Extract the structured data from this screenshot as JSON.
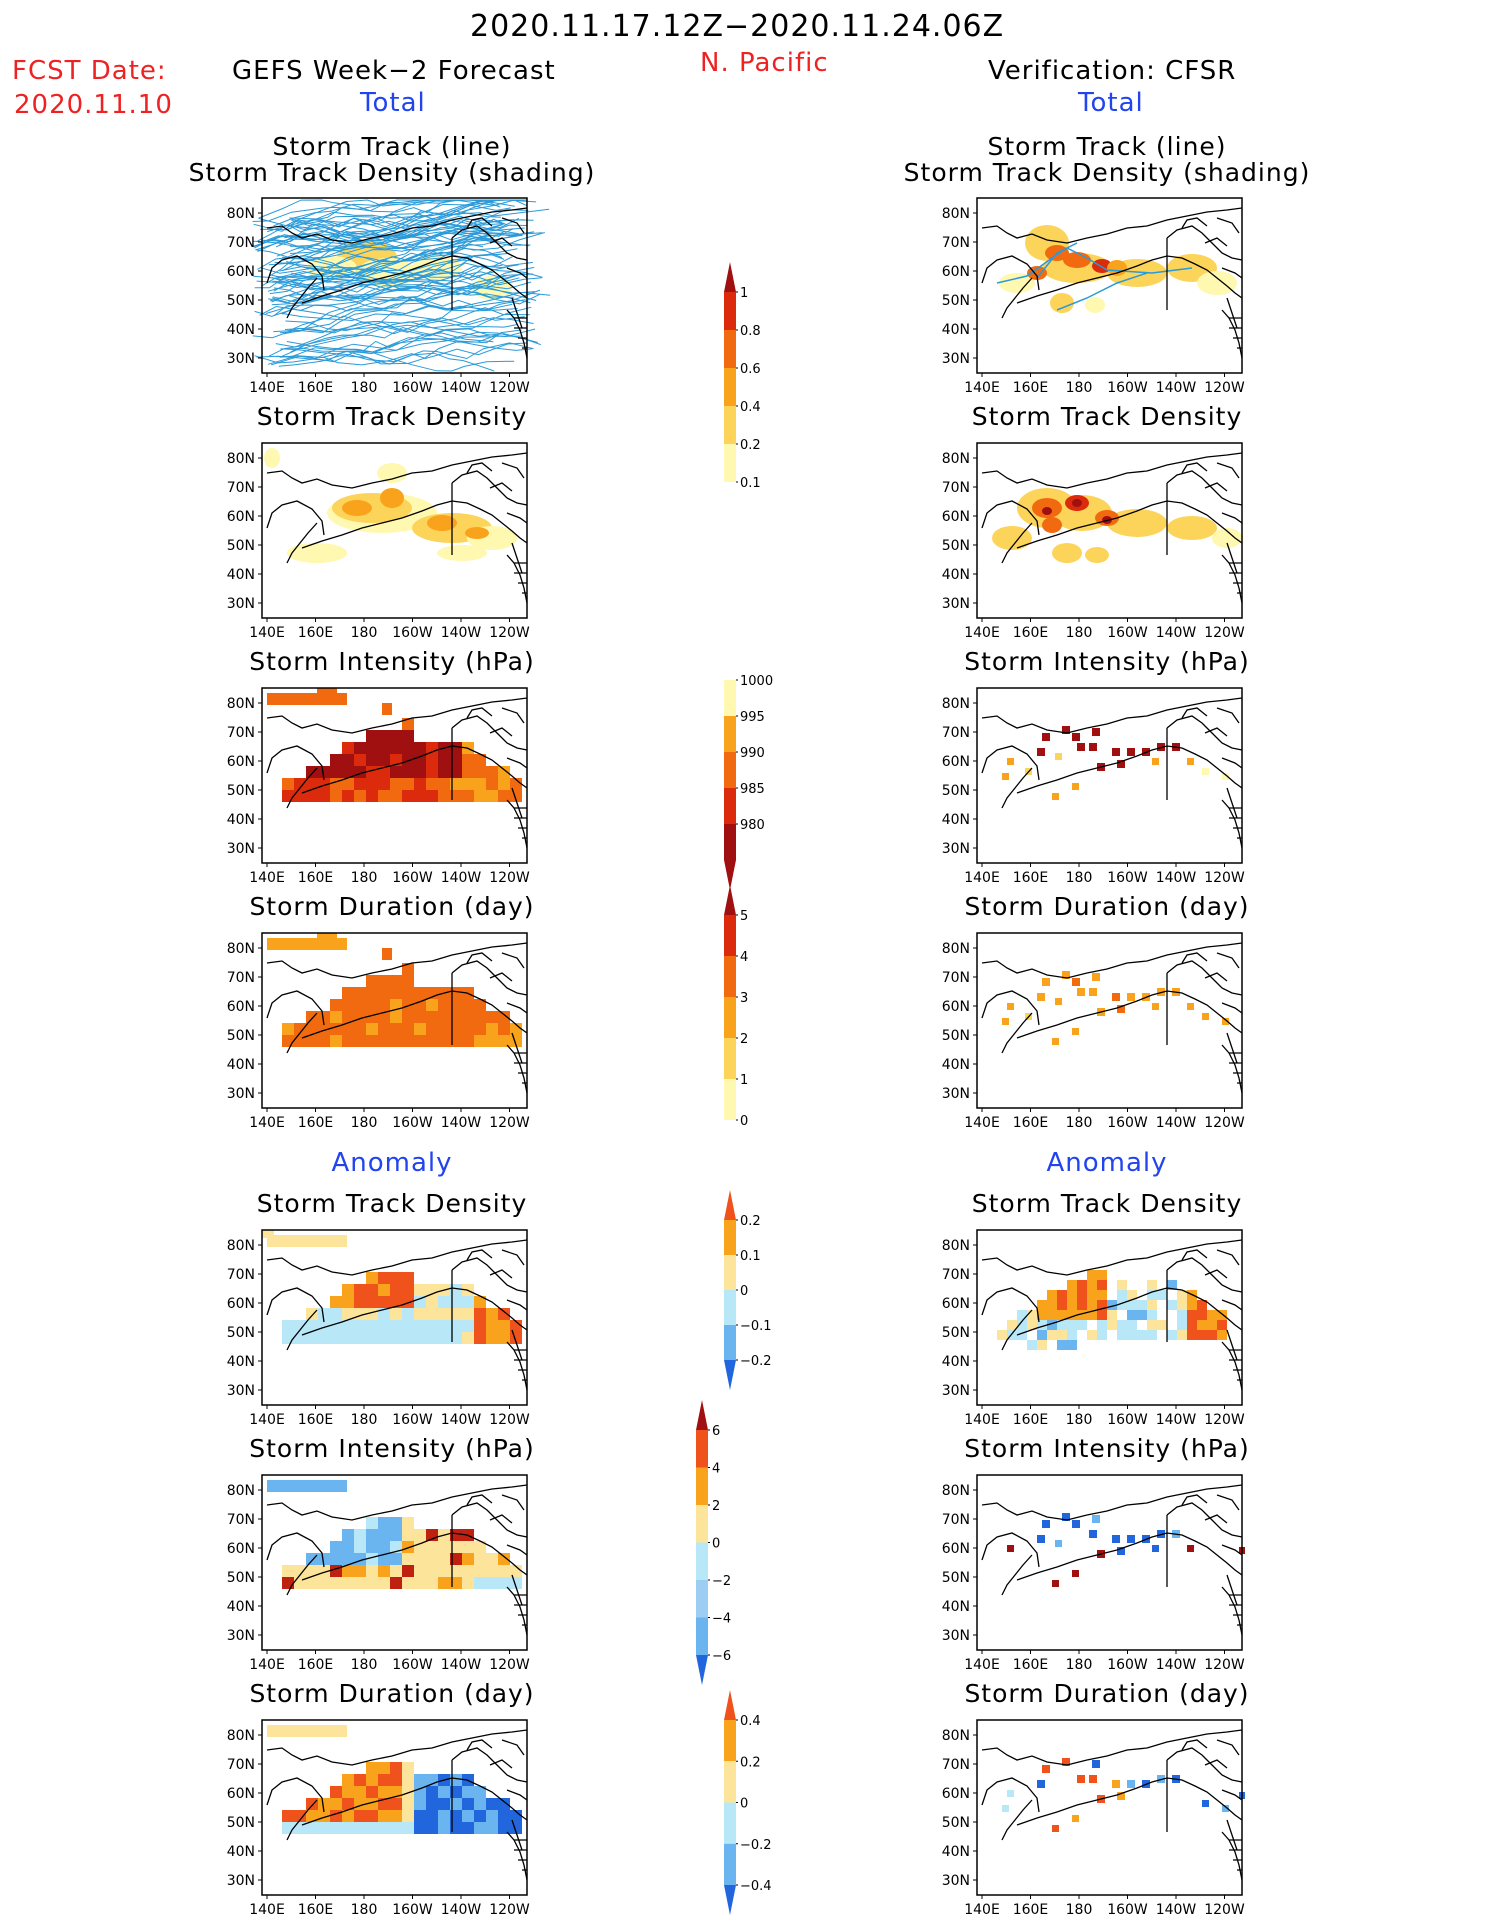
{
  "title": "2020.11.17.12Z−2020.11.24.06Z",
  "region": "N. Pacific",
  "fcst_label": "FCST Date:",
  "fcst_date": "2020.11.10",
  "left_header": "GEFS Week−2 Forecast",
  "right_header": "Verification: CFSR",
  "total_label": "Total",
  "anomaly_label": "Anomaly",
  "panel_titles": {
    "track_line": "Storm Track (line)",
    "track_shading": "Storm Track Density (shading)",
    "density": "Storm Track Density",
    "intensity": "Storm Intensity (hPa)",
    "duration": "Storm Duration (day)"
  },
  "lat_labels": [
    "80N",
    "70N",
    "60N",
    "50N",
    "40N",
    "30N"
  ],
  "lon_labels": [
    "140E",
    "160E",
    "180",
    "160W",
    "140W",
    "120W"
  ],
  "colorbars": {
    "density": [
      "1",
      "0.8",
      "0.6",
      "0.4",
      "0.2",
      "0.1"
    ],
    "intensity": [
      "1000",
      "995",
      "990",
      "985",
      "980"
    ],
    "duration": [
      "5",
      "4",
      "3",
      "2",
      "1",
      "0"
    ],
    "density_anom": [
      "0.2",
      "0.1",
      "0",
      "−0.1",
      "−0.2"
    ],
    "intensity_anom": [
      "6",
      "4",
      "2",
      "0",
      "−2",
      "−4",
      "−6"
    ],
    "duration_anom": [
      "0.4",
      "0.2",
      "0",
      "−0.2",
      "−0.4"
    ]
  },
  "colors": {
    "title_red": "#ee2222",
    "label_blue": "#2244ee",
    "track_blue": "#2a9ad8",
    "shade_seq": [
      "#fff8b0",
      "#fcd45a",
      "#f9a21c",
      "#f26a10",
      "#dc2a0c",
      "#a01010"
    ],
    "anom_pos": [
      "#fce49a",
      "#f9a21c",
      "#f0521c"
    ],
    "anom_neg": [
      "#b8e8f8",
      "#6ab4f0",
      "#2266dd"
    ]
  }
}
